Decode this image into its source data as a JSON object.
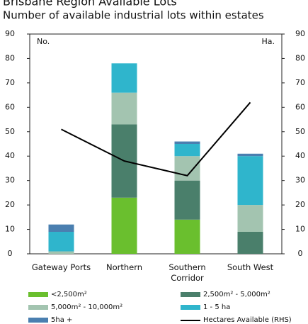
{
  "chart_data": {
    "type": "bar",
    "stacked": true,
    "title": "Brisbane Region Available Lots",
    "subtitle": "Number of available industrial lots within estates",
    "ylabel": "No.",
    "y2label": "Ha.",
    "categories": [
      "Gateway Ports",
      "Northern",
      "Southern Corridor",
      "South West"
    ],
    "series": [
      {
        "name": "<2,500m²",
        "color": "#6abf2e",
        "values": [
          0,
          23,
          14,
          0
        ]
      },
      {
        "name": "2,500m² - 5,000m²",
        "color": "#4a7f6b",
        "values": [
          0,
          30,
          16,
          9
        ]
      },
      {
        "name": "5,000m² - 10,000m²",
        "color": "#a3c4b0",
        "values": [
          1,
          13,
          10,
          11
        ]
      },
      {
        "name": "1 - 5 ha",
        "color": "#2fb5cc",
        "values": [
          8,
          12,
          5,
          20
        ]
      },
      {
        "name": "5ha +",
        "color": "#4a7fb0",
        "values": [
          3,
          0,
          1,
          1
        ]
      },
      {
        "name": "Hectares Available (RHS)",
        "color": "#000000",
        "type": "line",
        "axis": "y2",
        "values": [
          51,
          38,
          32,
          62
        ]
      }
    ],
    "ylim": [
      0,
      90
    ],
    "yticks": [
      0,
      10,
      20,
      30,
      40,
      50,
      60,
      70,
      80,
      90
    ],
    "y2lim": [
      0,
      90
    ],
    "y2ticks": [
      0,
      10,
      20,
      30,
      40,
      50,
      60,
      70,
      80,
      90
    ],
    "grid": false
  }
}
